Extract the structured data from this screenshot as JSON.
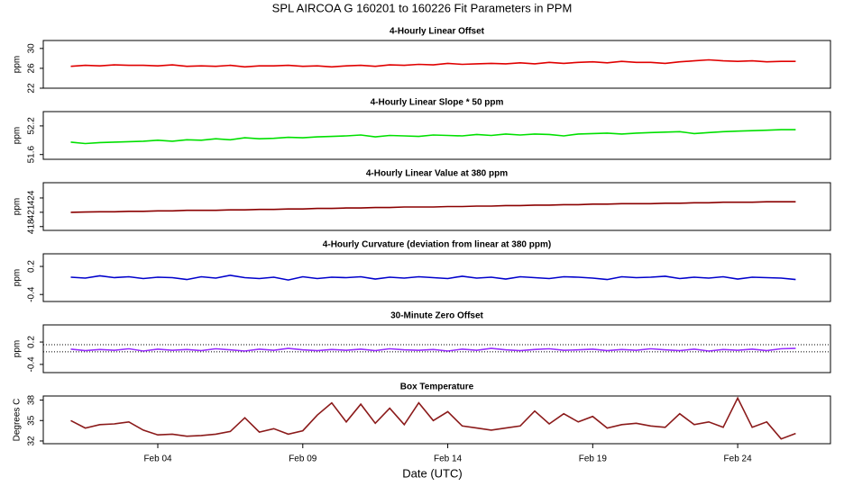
{
  "title": "SPL   AIRCOA G   160201 to 160226   Fit Parameters in PPM",
  "chart_data": [
    {
      "type": "line",
      "title": "4-Hourly Linear Offset",
      "ylabel": "ppm",
      "ylim": [
        22,
        31.6
      ],
      "yticks": [
        22,
        26,
        30
      ],
      "xlim": [
        0.05,
        27.2
      ],
      "x": [
        1,
        1.5,
        2,
        2.5,
        3,
        3.5,
        4,
        4.5,
        5,
        5.5,
        6,
        6.5,
        7,
        7.5,
        8,
        8.5,
        9,
        9.5,
        10,
        10.5,
        11,
        11.5,
        12,
        12.5,
        13,
        13.5,
        14,
        14.5,
        15,
        15.5,
        16,
        16.5,
        17,
        17.5,
        18,
        18.5,
        19,
        19.5,
        20,
        20.5,
        21,
        21.5,
        22,
        22.5,
        23,
        23.5,
        24,
        24.5,
        25,
        25.5,
        26
      ],
      "series": [
        {
          "name": "offset",
          "color": "#e00000",
          "values": [
            26.4,
            26.6,
            26.5,
            26.7,
            26.6,
            26.6,
            26.5,
            26.7,
            26.4,
            26.5,
            26.4,
            26.6,
            26.3,
            26.5,
            26.5,
            26.6,
            26.4,
            26.5,
            26.3,
            26.5,
            26.6,
            26.4,
            26.7,
            26.6,
            26.8,
            26.7,
            27.0,
            26.8,
            26.9,
            27.0,
            26.9,
            27.1,
            26.9,
            27.2,
            27.0,
            27.2,
            27.3,
            27.1,
            27.4,
            27.2,
            27.2,
            27.0,
            27.3,
            27.5,
            27.7,
            27.5,
            27.4,
            27.5,
            27.3,
            27.4,
            27.4
          ]
        }
      ]
    },
    {
      "type": "line",
      "title": "4-Hourly Linear Slope * 50 ppm",
      "ylabel": "ppm",
      "ylim": [
        51.5,
        52.5
      ],
      "yticks": [
        51.6,
        52.2
      ],
      "xlim": [
        0.05,
        27.2
      ],
      "x": [
        1,
        1.5,
        2,
        2.5,
        3,
        3.5,
        4,
        4.5,
        5,
        5.5,
        6,
        6.5,
        7,
        7.5,
        8,
        8.5,
        9,
        9.5,
        10,
        10.5,
        11,
        11.5,
        12,
        12.5,
        13,
        13.5,
        14,
        14.5,
        15,
        15.5,
        16,
        16.5,
        17,
        17.5,
        18,
        18.5,
        19,
        19.5,
        20,
        20.5,
        21,
        21.5,
        22,
        22.5,
        23,
        23.5,
        24,
        24.5,
        25,
        25.5,
        26
      ],
      "series": [
        {
          "name": "slope",
          "color": "#00e000",
          "values": [
            51.86,
            51.83,
            51.85,
            51.86,
            51.87,
            51.88,
            51.9,
            51.88,
            51.91,
            51.9,
            51.93,
            51.91,
            51.95,
            51.93,
            51.94,
            51.96,
            51.95,
            51.97,
            51.98,
            51.99,
            52.01,
            51.97,
            52.0,
            51.99,
            51.98,
            52.01,
            52.0,
            51.99,
            52.02,
            52.0,
            52.03,
            52.01,
            52.03,
            52.02,
            51.99,
            52.03,
            52.04,
            52.05,
            52.03,
            52.05,
            52.06,
            52.07,
            52.08,
            52.04,
            52.06,
            52.08,
            52.09,
            52.1,
            52.11,
            52.12,
            52.12
          ]
        }
      ]
    },
    {
      "type": "line",
      "title": "4-Hourly Linear Value at 380 ppm",
      "ylabel": "ppm",
      "ylim": [
        417.2,
        427.2
      ],
      "yticks": [
        418,
        421,
        424
      ],
      "xlim": [
        0.05,
        27.2
      ],
      "x": [
        1,
        1.5,
        2,
        2.5,
        3,
        3.5,
        4,
        4.5,
        5,
        5.5,
        6,
        6.5,
        7,
        7.5,
        8,
        8.5,
        9,
        9.5,
        10,
        10.5,
        11,
        11.5,
        12,
        12.5,
        13,
        13.5,
        14,
        14.5,
        15,
        15.5,
        16,
        16.5,
        17,
        17.5,
        18,
        18.5,
        19,
        19.5,
        20,
        20.5,
        21,
        21.5,
        22,
        22.5,
        23,
        23.5,
        24,
        24.5,
        25,
        25.5,
        26
      ],
      "series": [
        {
          "name": "value",
          "color": "#8b0000",
          "values": [
            421.0,
            421.05,
            421.1,
            421.1,
            421.2,
            421.2,
            421.3,
            421.3,
            421.4,
            421.4,
            421.4,
            421.5,
            421.5,
            421.6,
            421.6,
            421.7,
            421.7,
            421.8,
            421.8,
            421.9,
            421.9,
            422.0,
            422.0,
            422.1,
            422.1,
            422.1,
            422.2,
            422.2,
            422.3,
            422.3,
            422.4,
            422.4,
            422.5,
            422.5,
            422.6,
            422.6,
            422.7,
            422.7,
            422.8,
            422.8,
            422.8,
            422.9,
            422.9,
            423.0,
            423.0,
            423.1,
            423.1,
            423.1,
            423.2,
            423.2,
            423.2
          ]
        }
      ]
    },
    {
      "type": "line",
      "title": "4-Hourly Curvature (deviation from linear at 380 ppm)",
      "ylabel": "ppm",
      "ylim": [
        -0.55,
        0.47
      ],
      "yticks": [
        -0.4,
        0.2
      ],
      "xlim": [
        0.05,
        27.2
      ],
      "x": [
        1,
        1.5,
        2,
        2.5,
        3,
        3.5,
        4,
        4.5,
        5,
        5.5,
        6,
        6.5,
        7,
        7.5,
        8,
        8.5,
        9,
        9.5,
        10,
        10.5,
        11,
        11.5,
        12,
        12.5,
        13,
        13.5,
        14,
        14.5,
        15,
        15.5,
        16,
        16.5,
        17,
        17.5,
        18,
        18.5,
        19,
        19.5,
        20,
        20.5,
        21,
        21.5,
        22,
        22.5,
        23,
        23.5,
        24,
        24.5,
        25,
        25.5,
        26
      ],
      "series": [
        {
          "name": "curvature",
          "color": "#0000cc",
          "values": [
            -0.03,
            -0.05,
            0.0,
            -0.04,
            -0.02,
            -0.06,
            -0.03,
            -0.04,
            -0.08,
            -0.02,
            -0.05,
            0.01,
            -0.04,
            -0.06,
            -0.03,
            -0.09,
            -0.02,
            -0.06,
            -0.03,
            -0.04,
            -0.02,
            -0.07,
            -0.03,
            -0.05,
            -0.02,
            -0.04,
            -0.06,
            -0.01,
            -0.05,
            -0.03,
            -0.07,
            -0.02,
            -0.04,
            -0.06,
            -0.02,
            -0.03,
            -0.05,
            -0.08,
            -0.02,
            -0.04,
            -0.03,
            -0.01,
            -0.06,
            -0.03,
            -0.05,
            -0.02,
            -0.07,
            -0.03,
            -0.04,
            -0.05,
            -0.08
          ]
        }
      ]
    },
    {
      "type": "line",
      "title": "30-Minute Zero Offset",
      "ylabel": "ppm",
      "ylim": [
        -0.62,
        0.66
      ],
      "yticks": [
        -0.4,
        0.2
      ],
      "xlim": [
        0.05,
        27.2
      ],
      "hlines": [
        0.13,
        -0.06
      ],
      "x": [
        1,
        1.5,
        2,
        2.5,
        3,
        3.5,
        4,
        4.5,
        5,
        5.5,
        6,
        6.5,
        7,
        7.5,
        8,
        8.5,
        9,
        9.5,
        10,
        10.5,
        11,
        11.5,
        12,
        12.5,
        13,
        13.5,
        14,
        14.5,
        15,
        15.5,
        16,
        16.5,
        17,
        17.5,
        18,
        18.5,
        19,
        19.5,
        20,
        20.5,
        21,
        21.5,
        22,
        22.5,
        23,
        23.5,
        24,
        24.5,
        25,
        25.5,
        26
      ],
      "series": [
        {
          "name": "zero",
          "color": "#9a30ff",
          "values": [
            0.01,
            -0.03,
            0.0,
            -0.02,
            0.02,
            -0.04,
            0.01,
            -0.02,
            0.0,
            -0.03,
            0.02,
            -0.01,
            -0.04,
            0.01,
            -0.02,
            0.03,
            -0.01,
            -0.03,
            0.0,
            -0.02,
            0.01,
            -0.03,
            0.02,
            -0.01,
            -0.02,
            0.0,
            -0.04,
            0.01,
            -0.02,
            0.03,
            -0.01,
            -0.03,
            0.0,
            0.02,
            -0.02,
            -0.01,
            0.01,
            -0.03,
            0.0,
            -0.02,
            0.02,
            -0.01,
            -0.03,
            0.01,
            -0.04,
            0.0,
            -0.02,
            0.01,
            -0.03,
            0.02,
            0.03
          ]
        }
      ]
    },
    {
      "type": "line",
      "title": "Box Temperature",
      "ylabel": "Degrees C",
      "ylim": [
        31.6,
        38.6
      ],
      "yticks": [
        32,
        35,
        38
      ],
      "xlim": [
        0.05,
        27.2
      ],
      "xlabel": "Date (UTC)",
      "xticks": [
        {
          "value": 4,
          "label": "Feb 04"
        },
        {
          "value": 9,
          "label": "Feb 09"
        },
        {
          "value": 14,
          "label": "Feb 14"
        },
        {
          "value": 19,
          "label": "Feb 19"
        },
        {
          "value": 24,
          "label": "Feb 24"
        }
      ],
      "x": [
        1,
        1.5,
        2,
        2.5,
        3,
        3.5,
        4,
        4.5,
        5,
        5.5,
        6,
        6.5,
        7,
        7.5,
        8,
        8.5,
        9,
        9.5,
        10,
        10.5,
        11,
        11.5,
        12,
        12.5,
        13,
        13.5,
        14,
        14.5,
        15,
        15.5,
        16,
        16.5,
        17,
        17.5,
        18,
        18.5,
        19,
        19.5,
        20,
        20.5,
        21,
        21.5,
        22,
        22.5,
        23,
        23.5,
        24,
        24.5,
        25,
        25.5,
        26
      ],
      "series": [
        {
          "name": "temperature",
          "color": "#8b1a1a",
          "values": [
            35.0,
            33.9,
            34.4,
            34.5,
            34.8,
            33.6,
            32.9,
            33.0,
            32.7,
            32.8,
            33.0,
            33.4,
            35.4,
            33.3,
            33.8,
            33.0,
            33.5,
            35.8,
            37.6,
            34.8,
            37.4,
            34.6,
            36.8,
            34.4,
            37.6,
            35.0,
            36.3,
            34.2,
            33.9,
            33.6,
            33.9,
            34.2,
            36.4,
            34.5,
            36.0,
            34.8,
            35.6,
            33.9,
            34.4,
            34.6,
            34.2,
            34.0,
            36.0,
            34.4,
            34.8,
            34.0,
            38.3,
            34.0,
            34.8,
            32.3,
            33.1
          ]
        }
      ]
    }
  ]
}
